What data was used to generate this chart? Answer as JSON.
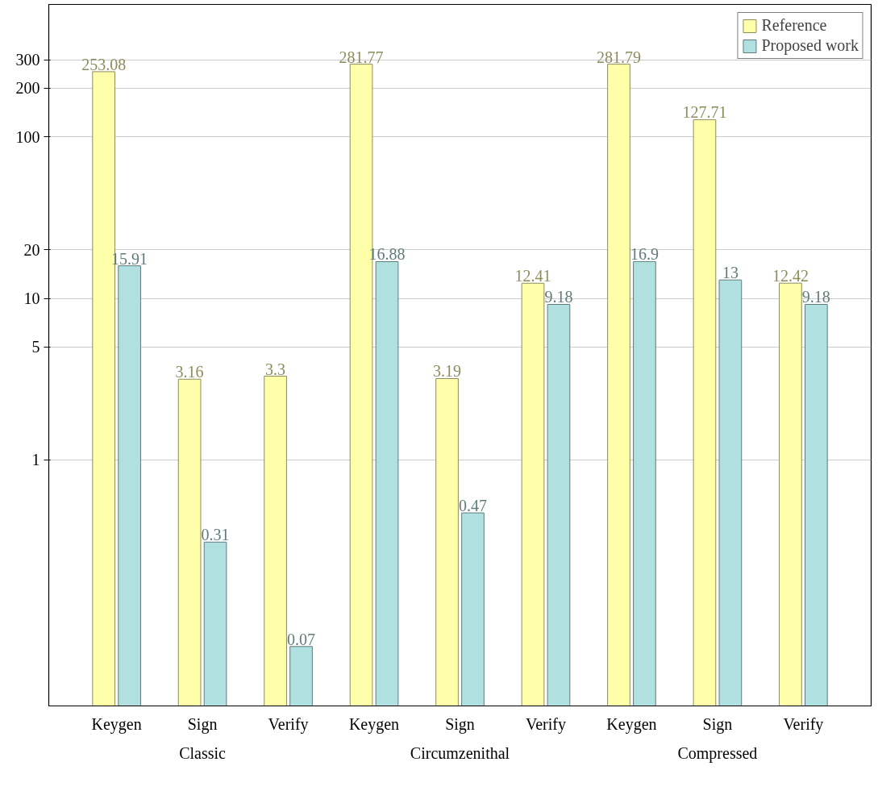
{
  "chart_data": {
    "type": "bar",
    "categories": [
      "Keygen",
      "Sign",
      "Verify",
      "Keygen",
      "Sign",
      "Verify",
      "Keygen",
      "Sign",
      "Verify"
    ],
    "series": [
      {
        "name": "Reference",
        "color": "#ffffaa",
        "values": [
          253.08,
          3.16,
          3.3,
          281.77,
          3.19,
          12.41,
          281.79,
          127.71,
          12.42
        ]
      },
      {
        "name": "Proposed work",
        "color": "#b0e0e0",
        "values": [
          15.91,
          0.31,
          0.07,
          16.88,
          0.47,
          9.18,
          16.9,
          13,
          9.18
        ]
      }
    ],
    "annotations": [
      "Classic",
      "Circumzenithal",
      "Compressed"
    ],
    "log": "y",
    "ylim": [
      0.03,
      660
    ],
    "yticks": [
      1,
      5,
      10,
      20,
      100,
      200,
      300
    ],
    "grid": "y",
    "legend": "top right",
    "data_labels": true
  }
}
